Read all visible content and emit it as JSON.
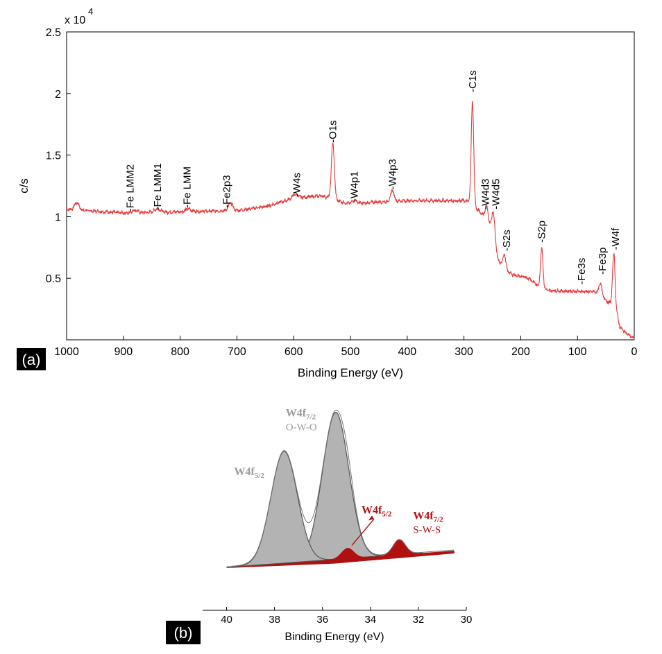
{
  "colors": {
    "survey_line": "#e83a3a",
    "w_oxide": "#b3b3b3",
    "w_oxide_edge": "#555555",
    "w_sulfide": "#b01010",
    "label_box": "#000000"
  },
  "chart_data": [
    {
      "panel_label": "(a)",
      "type": "line",
      "xlabel": "Binding Energy (eV)",
      "ylabel": "c/s",
      "y_multiplier": "x 10",
      "y_multiplier_exp": "4",
      "xlim": [
        1000,
        0
      ],
      "ylim": [
        0,
        2.5
      ],
      "x_reversed": true,
      "grid": false,
      "x_ticks": [
        "1000",
        "900",
        "800",
        "700",
        "600",
        "500",
        "400",
        "300",
        "200",
        "100",
        "0"
      ],
      "y_ticks": [
        "0.5",
        "1",
        "1.5",
        "2",
        "2.5"
      ],
      "baseline_segments": [
        {
          "x": 1000,
          "y": 1.06
        },
        {
          "x": 900,
          "y": 1.03
        },
        {
          "x": 800,
          "y": 1.04
        },
        {
          "x": 700,
          "y": 1.05
        },
        {
          "x": 650,
          "y": 1.08
        },
        {
          "x": 600,
          "y": 1.15
        },
        {
          "x": 550,
          "y": 1.17
        },
        {
          "x": 500,
          "y": 1.1
        },
        {
          "x": 450,
          "y": 1.12
        },
        {
          "x": 400,
          "y": 1.13
        },
        {
          "x": 300,
          "y": 1.13
        },
        {
          "x": 290,
          "y": 1.12
        },
        {
          "x": 275,
          "y": 1.05
        },
        {
          "x": 262,
          "y": 1.0
        },
        {
          "x": 250,
          "y": 0.9
        },
        {
          "x": 240,
          "y": 0.65
        },
        {
          "x": 230,
          "y": 0.58
        },
        {
          "x": 215,
          "y": 0.53
        },
        {
          "x": 185,
          "y": 0.5
        },
        {
          "x": 165,
          "y": 0.42
        },
        {
          "x": 150,
          "y": 0.4
        },
        {
          "x": 70,
          "y": 0.39
        },
        {
          "x": 55,
          "y": 0.35
        },
        {
          "x": 45,
          "y": 0.3
        },
        {
          "x": 35,
          "y": 0.3
        },
        {
          "x": 25,
          "y": 0.1
        },
        {
          "x": 10,
          "y": 0.04
        },
        {
          "x": 0,
          "y": 0.01
        }
      ],
      "peaks": [
        {
          "x": 982,
          "height": 0.06,
          "width": 4
        },
        {
          "x": 880,
          "height": 0.02,
          "width": 5
        },
        {
          "x": 840,
          "height": 0.03,
          "width": 5
        },
        {
          "x": 785,
          "height": 0.02,
          "width": 5
        },
        {
          "x": 711,
          "height": 0.06,
          "width": 4
        },
        {
          "x": 597,
          "height": 0.03,
          "width": 5
        },
        {
          "x": 531,
          "height": 0.45,
          "width": 2.6
        },
        {
          "x": 493,
          "height": 0.03,
          "width": 5
        },
        {
          "x": 426,
          "height": 0.09,
          "width": 3
        },
        {
          "x": 285,
          "height": 0.84,
          "width": 2.2
        },
        {
          "x": 260,
          "height": 0.1,
          "width": 2.5
        },
        {
          "x": 248,
          "height": 0.18,
          "width": 2.5
        },
        {
          "x": 229,
          "height": 0.12,
          "width": 2.5
        },
        {
          "x": 163,
          "height": 0.33,
          "width": 2.2
        },
        {
          "x": 60,
          "height": 0.1,
          "width": 2.5
        },
        {
          "x": 36,
          "height": 0.4,
          "width": 2.2
        }
      ],
      "annotations": [
        {
          "text": "Fe LMM2",
          "x": 888,
          "y": 1.04
        },
        {
          "text": "Fe LMM1",
          "x": 840,
          "y": 1.05
        },
        {
          "text": "Fe LMM",
          "x": 788,
          "y": 1.07
        },
        {
          "text": "Fe2p3",
          "x": 718,
          "y": 1.07
        },
        {
          "text": "W4s",
          "x": 595,
          "y": 1.16
        },
        {
          "text": "O1s",
          "x": 531,
          "y": 1.6
        },
        {
          "text": "W4p1",
          "x": 493,
          "y": 1.12
        },
        {
          "text": "W4p3",
          "x": 426,
          "y": 1.22
        },
        {
          "text": "C1s",
          "x": 285,
          "y": 2.01
        },
        {
          "text": "W4d3",
          "x": 262,
          "y": 1.06
        },
        {
          "text": "W4d5",
          "x": 244,
          "y": 1.06
        },
        {
          "text": "S2s",
          "x": 225,
          "y": 0.72
        },
        {
          "text": "S2p",
          "x": 163,
          "y": 0.79
        },
        {
          "text": "Fe3s",
          "x": 93,
          "y": 0.45
        },
        {
          "text": "Fe3p",
          "x": 56,
          "y": 0.53
        },
        {
          "text": "W4f",
          "x": 33,
          "y": 0.73
        }
      ]
    },
    {
      "panel_label": "(b)",
      "type": "area",
      "xlabel": "Binding Energy (eV)",
      "xlim": [
        41,
        30
      ],
      "x_reversed": true,
      "grid": false,
      "x_ticks": [
        "40",
        "38",
        "36",
        "34",
        "32",
        "30"
      ],
      "series": [
        {
          "name": "W4f",
          "sub": "7/2",
          "note": "O-W-O",
          "group": "oxide",
          "center": 35.45,
          "height": 1.0,
          "width": 0.55
        },
        {
          "name": "W4f",
          "sub": "5/2",
          "note": "",
          "group": "oxide",
          "center": 37.6,
          "height": 0.76,
          "width": 0.55
        },
        {
          "name": "W4f",
          "sub": "5/2",
          "note": "",
          "group": "sulfide",
          "center": 34.95,
          "height": 0.07,
          "width": 0.25
        },
        {
          "name": "W4f",
          "sub": "7/2",
          "note": "S-W-S",
          "group": "sulfide",
          "center": 32.8,
          "height": 0.1,
          "width": 0.25
        }
      ]
    }
  ]
}
